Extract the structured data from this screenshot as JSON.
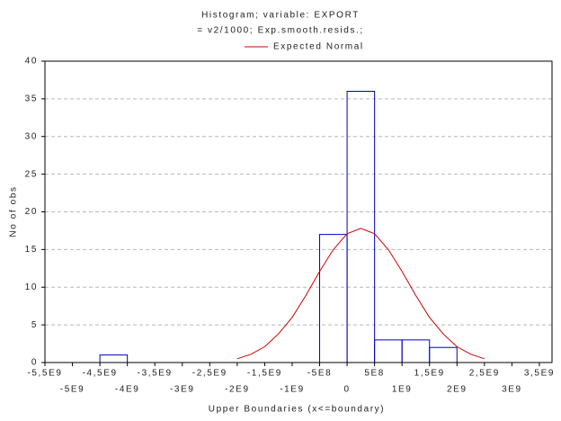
{
  "chart_data": {
    "type": "histogram",
    "title": "Histogram; variable: EXPORT",
    "subtitle": "= v2/1000; Exp.smooth.resids.;",
    "x_label": "Upper Boundaries (x<=boundary)",
    "y_label": "No of obs",
    "bins": [
      -4500000000,
      -4000000000,
      -3500000000,
      -3000000000,
      -2500000000,
      -2000000000,
      -1500000000,
      -1000000000,
      -500000000,
      0,
      500000000,
      1000000000,
      1500000000,
      2000000000
    ],
    "values": [
      1,
      0,
      0,
      0,
      0,
      0,
      0,
      0,
      17,
      36,
      3,
      3,
      2
    ],
    "color": "#0000c0",
    "curve": {
      "name": "Expected Normal",
      "color": "#d00000",
      "x": [
        -2000000000,
        -1750000000,
        -1500000000,
        -1250000000,
        -1000000000,
        -750000000,
        -500000000,
        -250000000,
        0,
        250000000,
        500000000,
        750000000,
        1000000000,
        1250000000,
        1500000000,
        1750000000,
        2000000000,
        2250000000,
        2500000000
      ],
      "values": [
        0.5,
        1.1,
        2.1,
        3.8,
        6.0,
        8.9,
        12.1,
        15.0,
        17.1,
        17.8,
        17.1,
        15.0,
        12.1,
        8.9,
        6.0,
        3.8,
        2.1,
        1.1,
        0.5
      ]
    },
    "xlim": [
      -5500000000,
      3730000000
    ],
    "ylim": [
      0,
      40
    ],
    "xticks": [
      {
        "value": -5500000000,
        "label": "-5,5E9"
      },
      {
        "value": -5000000000,
        "label": "-5E9"
      },
      {
        "value": -4500000000,
        "label": "-4,5E9"
      },
      {
        "value": -4000000000,
        "label": "-4E9"
      },
      {
        "value": -3500000000,
        "label": "-3,5E9"
      },
      {
        "value": -3000000000,
        "label": "-3E9"
      },
      {
        "value": -2500000000,
        "label": "-2,5E9"
      },
      {
        "value": -2000000000,
        "label": "-2E9"
      },
      {
        "value": -1500000000,
        "label": "-1,5E9"
      },
      {
        "value": -1000000000,
        "label": "-1E9"
      },
      {
        "value": -500000000,
        "label": "-5E8"
      },
      0,
      {
        "value": 500000000,
        "label": "5E8"
      },
      {
        "value": 1000000000,
        "label": "1E9"
      },
      {
        "value": 1500000000,
        "label": "1,5E9"
      },
      {
        "value": 2000000000,
        "label": "2E9"
      },
      {
        "value": 2500000000,
        "label": "2,5E9"
      },
      {
        "value": 3000000000,
        "label": "3E9"
      },
      {
        "value": 3500000000,
        "label": "3,5E9"
      }
    ],
    "yticks": [
      0,
      5,
      10,
      15,
      20,
      25,
      30,
      35,
      40
    ],
    "grid": true
  }
}
